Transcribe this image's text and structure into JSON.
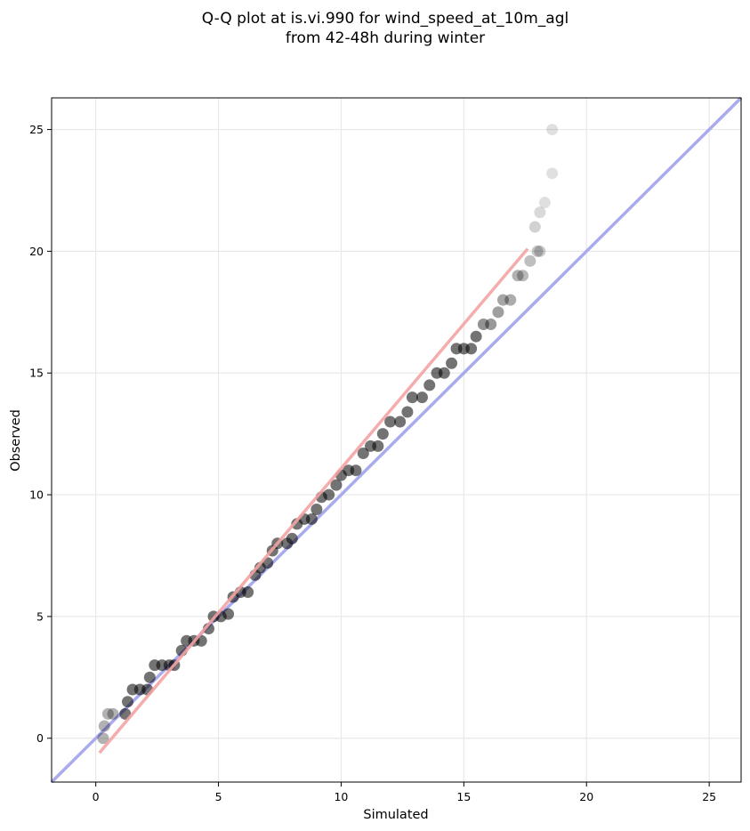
{
  "chart_data": {
    "type": "scatter",
    "title_lines": [
      "Q-Q plot at is.vi.990 for wind_speed_at_10m_agl",
      "from 42-48h during winter"
    ],
    "xlabel": "Simulated",
    "ylabel": "Observed",
    "xlim": [
      -1.8,
      26.3
    ],
    "ylim": [
      -1.8,
      26.3
    ],
    "xticks": [
      0,
      5,
      10,
      15,
      20,
      25
    ],
    "yticks": [
      0,
      5,
      10,
      15,
      20,
      25
    ],
    "grid": true,
    "series": [
      {
        "role": "quantiles",
        "color": "#000000",
        "points": [
          [
            0.3,
            0.0
          ],
          [
            0.35,
            0.5
          ],
          [
            0.5,
            1.0
          ],
          [
            0.7,
            1.0
          ],
          [
            1.2,
            1.0
          ],
          [
            1.3,
            1.5
          ],
          [
            1.5,
            2.0
          ],
          [
            1.8,
            2.0
          ],
          [
            2.1,
            2.0
          ],
          [
            2.2,
            2.5
          ],
          [
            2.4,
            3.0
          ],
          [
            2.7,
            3.0
          ],
          [
            3.0,
            3.0
          ],
          [
            3.2,
            3.0
          ],
          [
            3.5,
            3.6
          ],
          [
            3.7,
            4.0
          ],
          [
            4.0,
            4.0
          ],
          [
            4.3,
            4.0
          ],
          [
            4.6,
            4.5
          ],
          [
            4.8,
            5.0
          ],
          [
            5.1,
            5.0
          ],
          [
            5.4,
            5.1
          ],
          [
            5.6,
            5.8
          ],
          [
            5.9,
            6.0
          ],
          [
            6.2,
            6.0
          ],
          [
            6.5,
            6.7
          ],
          [
            6.7,
            7.0
          ],
          [
            7.0,
            7.2
          ],
          [
            7.2,
            7.7
          ],
          [
            7.4,
            8.0
          ],
          [
            7.8,
            8.0
          ],
          [
            8.0,
            8.2
          ],
          [
            8.2,
            8.8
          ],
          [
            8.5,
            9.0
          ],
          [
            8.8,
            9.0
          ],
          [
            9.0,
            9.4
          ],
          [
            9.2,
            9.9
          ],
          [
            9.5,
            10.0
          ],
          [
            9.8,
            10.4
          ],
          [
            10.0,
            10.8
          ],
          [
            10.3,
            11.0
          ],
          [
            10.6,
            11.0
          ],
          [
            10.9,
            11.7
          ],
          [
            11.2,
            12.0
          ],
          [
            11.5,
            12.0
          ],
          [
            11.7,
            12.5
          ],
          [
            12.0,
            13.0
          ],
          [
            12.4,
            13.0
          ],
          [
            12.7,
            13.4
          ],
          [
            12.9,
            14.0
          ],
          [
            13.3,
            14.0
          ],
          [
            13.6,
            14.5
          ],
          [
            13.9,
            15.0
          ],
          [
            14.2,
            15.0
          ],
          [
            14.5,
            15.4
          ],
          [
            14.7,
            16.0
          ],
          [
            15.0,
            16.0
          ],
          [
            15.3,
            16.0
          ],
          [
            15.5,
            16.5
          ],
          [
            15.8,
            17.0
          ],
          [
            16.1,
            17.0
          ],
          [
            16.4,
            17.5
          ],
          [
            16.6,
            18.0
          ],
          [
            16.9,
            18.0
          ],
          [
            17.2,
            19.0
          ],
          [
            17.4,
            19.0
          ],
          [
            17.7,
            19.6
          ],
          [
            18.0,
            20.0
          ],
          [
            18.1,
            20.0
          ],
          [
            17.9,
            21.0
          ],
          [
            18.1,
            21.6
          ],
          [
            18.3,
            22.0
          ],
          [
            18.6,
            23.2
          ],
          [
            18.6,
            25.0
          ]
        ]
      },
      {
        "role": "fit-line",
        "color": "#f4a3a3",
        "points": [
          [
            0.15,
            -0.6
          ],
          [
            17.6,
            20.1
          ]
        ]
      },
      {
        "role": "one-to-one-line",
        "color": "#aaaaee",
        "points": [
          [
            -1.8,
            -1.8
          ],
          [
            26.3,
            26.3
          ]
        ]
      }
    ]
  }
}
